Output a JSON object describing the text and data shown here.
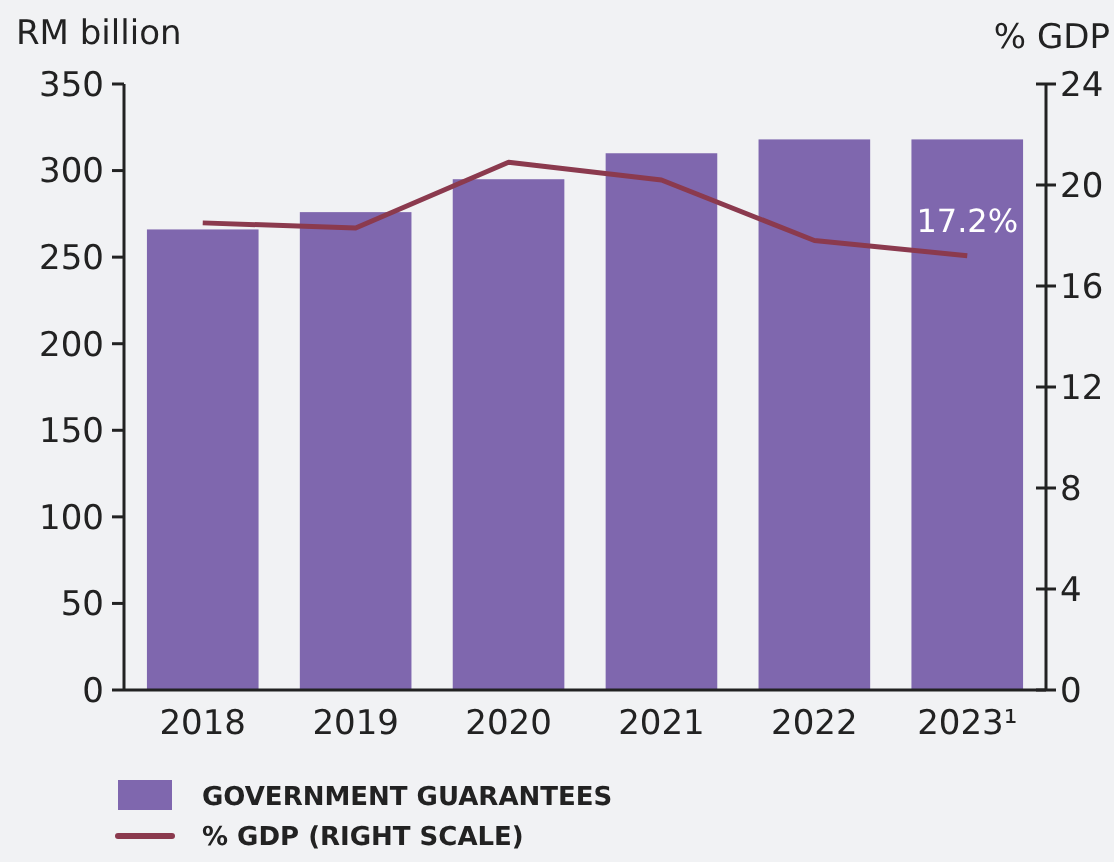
{
  "chart_data": {
    "type": "bar",
    "ylabel": "RM billion",
    "y2label": "% GDP",
    "categories": [
      "2018",
      "2019",
      "2020",
      "2021",
      "2022",
      "2023¹"
    ],
    "series": [
      {
        "name": "GOVERNMENT GUARANTEES",
        "color": "#7f67ae",
        "values": [
          266,
          276,
          295,
          310,
          318,
          318
        ]
      },
      {
        "name": "% GDP (RIGHT SCALE)",
        "type": "line",
        "axis": "y2",
        "color": "#8b3a4e",
        "values": [
          18.5,
          18.3,
          20.9,
          20.2,
          17.8,
          17.2
        ],
        "value_labels": [
          null,
          null,
          null,
          null,
          null,
          "17.2%"
        ]
      }
    ],
    "ylim": [
      0,
      350
    ],
    "yticks": [
      0,
      50,
      100,
      150,
      200,
      250,
      300,
      350
    ],
    "y2lim": [
      0,
      24
    ],
    "y2ticks": [
      0,
      4,
      8,
      12,
      16,
      20,
      24
    ],
    "legend": "bottom",
    "grid": false,
    "marker": "none",
    "line_style": "solid"
  }
}
